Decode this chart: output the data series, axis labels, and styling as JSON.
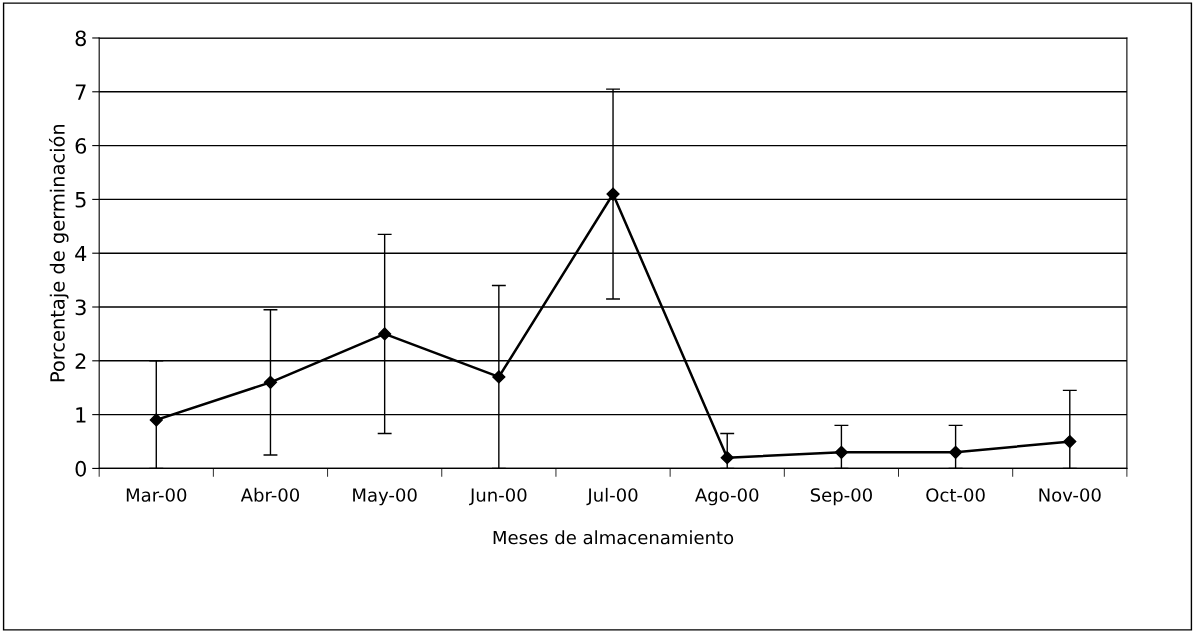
{
  "chart_data": {
    "type": "line",
    "xlabel": "Meses de almacenamiento",
    "ylabel": "Porcentaje de germinación",
    "categories": [
      "Mar-00",
      "Abr-00",
      "May-00",
      "Jun-00",
      "Jul-00",
      "Ago-00",
      "Sep-00",
      "Oct-00",
      "Nov-00"
    ],
    "series": [
      {
        "color": "#000000",
        "values": [
          0.9,
          1.6,
          2.5,
          1.7,
          5.1,
          0.2,
          0.3,
          0.3,
          0.5
        ],
        "errors": [
          [
            0,
            2.0
          ],
          1.35,
          1.85,
          [
            0,
            3.4
          ],
          1.95,
          [
            0,
            0.65
          ],
          [
            0,
            0.8
          ],
          [
            0,
            0.8
          ],
          [
            0,
            1.45
          ]
        ]
      }
    ],
    "ylim": [
      0,
      8
    ],
    "yticks": [
      0,
      1,
      2,
      3,
      4,
      5,
      6,
      7,
      8
    ],
    "grid": "y",
    "legend": false,
    "marker": "diamond",
    "line_style": "solid"
  }
}
